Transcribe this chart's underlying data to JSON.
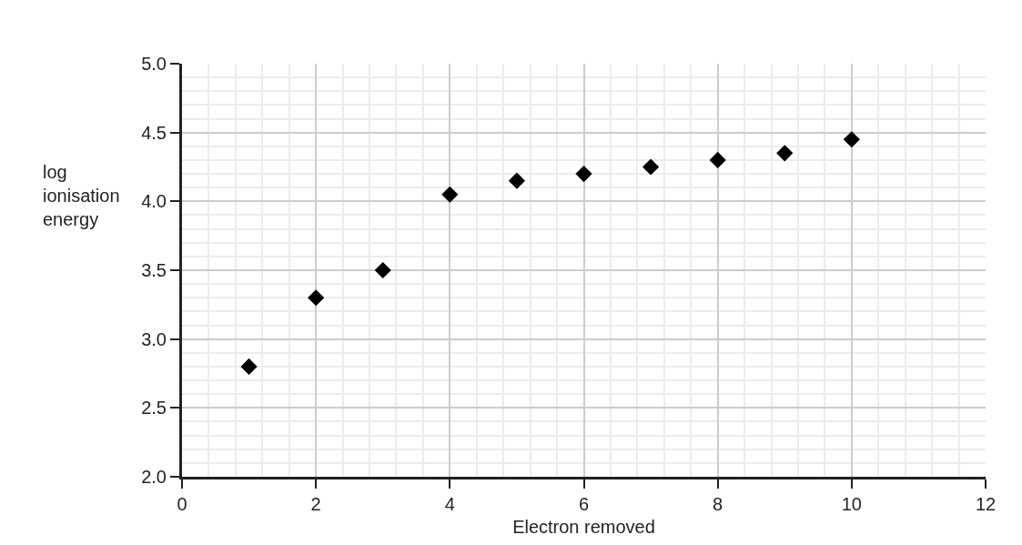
{
  "chart_data": {
    "type": "scatter",
    "xlabel": "Electron removed",
    "ylabel": "log\nionisation\nenergy",
    "x": [
      1,
      2,
      3,
      4,
      5,
      6,
      7,
      8,
      9,
      10
    ],
    "series": [
      {
        "color": "#000000",
        "values": [
          2.8,
          3.3,
          3.5,
          4.05,
          4.15,
          4.2,
          4.25,
          4.3,
          4.35,
          4.45
        ]
      }
    ],
    "marker": "diamond",
    "grid": true,
    "xlim": [
      0,
      12
    ],
    "xticks": [
      0,
      2,
      4,
      6,
      8,
      10,
      12
    ],
    "ylim": [
      2.0,
      5.0
    ],
    "yticks": [
      {
        "value": 2.0,
        "label": "2.0"
      },
      {
        "value": 2.5,
        "label": "2.5"
      },
      {
        "value": 3.0,
        "label": "3.0"
      },
      {
        "value": 3.5,
        "label": "3.5"
      },
      {
        "value": 4.0,
        "label": "4.0"
      },
      {
        "value": 4.5,
        "label": "4.5"
      },
      {
        "value": 5.0,
        "label": "5.0"
      }
    ]
  }
}
